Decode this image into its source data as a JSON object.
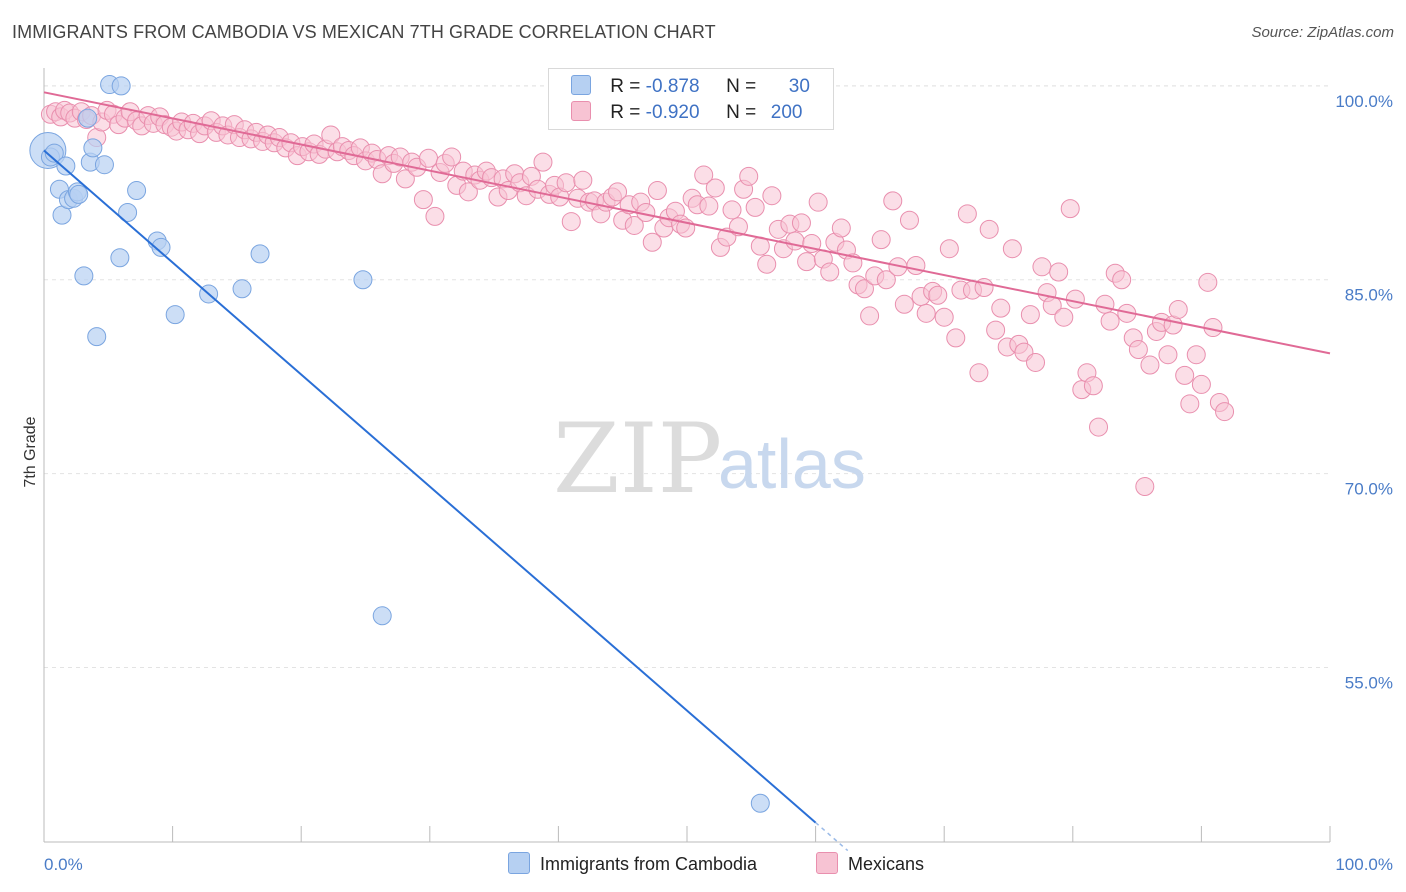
{
  "title": "IMMIGRANTS FROM CAMBODIA VS MEXICAN 7TH GRADE CORRELATION CHART",
  "source": "Source: ZipAtlas.com",
  "watermark": {
    "zip": "ZIP",
    "atlas": "atlas"
  },
  "legend": {
    "rows": [
      {
        "r_label": "R =",
        "r_value": "-0.878",
        "n_label": "N =",
        "n_value": "30"
      },
      {
        "r_label": "R =",
        "r_value": "-0.920",
        "n_label": "N =",
        "n_value": "200"
      }
    ]
  },
  "bottom_legend": {
    "cambodia": "Immigrants from Cambodia",
    "mexicans": "Mexicans"
  },
  "colors": {
    "cambodia_fill": "#b6d0f2",
    "cambodia_stroke": "#7aa5e0",
    "cambodia_line": "#2a6fd6",
    "mexican_fill": "#f7c3d3",
    "mexican_stroke": "#e98fae",
    "mexican_line": "#e06a96"
  },
  "chart_data": {
    "type": "scatter",
    "title": "IMMIGRANTS FROM CAMBODIA VS MEXICAN 7TH GRADE CORRELATION CHART",
    "xlabel": "",
    "ylabel": "7th Grade",
    "xlim": [
      0,
      100
    ],
    "ylim": [
      41.5,
      102
    ],
    "x_tick_labels": [
      "0.0%",
      "100.0%"
    ],
    "y_ticks": [
      55,
      70,
      85,
      100
    ],
    "y_tick_labels": [
      "55.0%",
      "70.0%",
      "85.0%",
      "100.0%"
    ],
    "grid": true,
    "legend_position": "top-center",
    "series": [
      {
        "name": "Immigrants from Cambodia",
        "points": [
          [
            0.3,
            95.0
          ],
          [
            0.5,
            94.5
          ],
          [
            0.8,
            94.8
          ],
          [
            1.2,
            92.0
          ],
          [
            1.4,
            90.0
          ],
          [
            1.7,
            93.8
          ],
          [
            1.9,
            91.2
          ],
          [
            2.3,
            91.3
          ],
          [
            2.6,
            91.8
          ],
          [
            2.7,
            91.6
          ],
          [
            3.1,
            85.3
          ],
          [
            3.4,
            97.5
          ],
          [
            3.6,
            94.1
          ],
          [
            3.8,
            95.2
          ],
          [
            4.1,
            80.6
          ],
          [
            4.7,
            93.9
          ],
          [
            5.1,
            100.1
          ],
          [
            6.0,
            100.0
          ],
          [
            5.9,
            86.7
          ],
          [
            6.5,
            90.2
          ],
          [
            7.2,
            91.9
          ],
          [
            8.8,
            88.0
          ],
          [
            9.1,
            87.5
          ],
          [
            10.2,
            82.3
          ],
          [
            12.8,
            83.9
          ],
          [
            15.4,
            84.3
          ],
          [
            16.8,
            87.0
          ],
          [
            24.8,
            85.0
          ],
          [
            26.3,
            59.0
          ],
          [
            55.7,
            44.5
          ]
        ],
        "trend": {
          "x": [
            0,
            60
          ],
          "y": [
            95.0,
            43.0
          ],
          "dashed_x": [
            60,
            62.5
          ]
        }
      },
      {
        "name": "Mexicans",
        "points": [
          [
            0.5,
            97.8
          ],
          [
            0.9,
            98.0
          ],
          [
            1.3,
            97.6
          ],
          [
            1.6,
            98.1
          ],
          [
            2.0,
            97.9
          ],
          [
            2.4,
            97.5
          ],
          [
            2.9,
            98.0
          ],
          [
            3.3,
            97.4
          ],
          [
            3.7,
            97.7
          ],
          [
            4.1,
            96.0
          ],
          [
            4.5,
            97.2
          ],
          [
            4.9,
            98.1
          ],
          [
            5.4,
            97.8
          ],
          [
            5.8,
            97.0
          ],
          [
            6.3,
            97.5
          ],
          [
            6.7,
            98.0
          ],
          [
            7.2,
            97.3
          ],
          [
            7.6,
            96.9
          ],
          [
            8.1,
            97.7
          ],
          [
            8.5,
            97.1
          ],
          [
            9.0,
            97.6
          ],
          [
            9.4,
            97.0
          ],
          [
            9.9,
            96.8
          ],
          [
            10.3,
            96.5
          ],
          [
            10.7,
            97.2
          ],
          [
            11.2,
            96.6
          ],
          [
            11.6,
            97.1
          ],
          [
            12.1,
            96.3
          ],
          [
            12.5,
            96.9
          ],
          [
            13.0,
            97.3
          ],
          [
            13.4,
            96.4
          ],
          [
            13.9,
            96.9
          ],
          [
            14.3,
            96.2
          ],
          [
            14.8,
            97.0
          ],
          [
            15.2,
            96.0
          ],
          [
            15.6,
            96.6
          ],
          [
            16.1,
            95.9
          ],
          [
            16.5,
            96.4
          ],
          [
            17.0,
            95.7
          ],
          [
            17.4,
            96.2
          ],
          [
            17.9,
            95.6
          ],
          [
            18.3,
            96.0
          ],
          [
            18.8,
            95.2
          ],
          [
            19.2,
            95.6
          ],
          [
            19.7,
            94.6
          ],
          [
            20.1,
            95.3
          ],
          [
            20.6,
            94.9
          ],
          [
            21.0,
            95.5
          ],
          [
            21.4,
            94.7
          ],
          [
            21.9,
            95.1
          ],
          [
            22.3,
            96.2
          ],
          [
            22.8,
            94.9
          ],
          [
            23.2,
            95.3
          ],
          [
            23.7,
            95.0
          ],
          [
            24.1,
            94.6
          ],
          [
            24.6,
            95.2
          ],
          [
            25.0,
            94.2
          ],
          [
            25.5,
            94.8
          ],
          [
            25.9,
            94.3
          ],
          [
            26.3,
            93.2
          ],
          [
            26.8,
            94.6
          ],
          [
            27.2,
            94.0
          ],
          [
            27.7,
            94.5
          ],
          [
            28.1,
            92.8
          ],
          [
            28.6,
            94.1
          ],
          [
            29.0,
            93.7
          ],
          [
            29.5,
            91.2
          ],
          [
            29.9,
            94.4
          ],
          [
            30.4,
            89.9
          ],
          [
            30.8,
            93.3
          ],
          [
            31.2,
            94.0
          ],
          [
            31.7,
            94.5
          ],
          [
            32.1,
            92.3
          ],
          [
            32.6,
            93.4
          ],
          [
            33.0,
            91.8
          ],
          [
            33.5,
            93.1
          ],
          [
            33.9,
            92.7
          ],
          [
            34.4,
            93.4
          ],
          [
            34.8,
            92.9
          ],
          [
            35.3,
            91.4
          ],
          [
            35.7,
            92.8
          ],
          [
            36.1,
            91.9
          ],
          [
            36.6,
            93.2
          ],
          [
            37.0,
            92.5
          ],
          [
            37.5,
            91.5
          ],
          [
            37.9,
            93.0
          ],
          [
            38.4,
            92.0
          ],
          [
            38.8,
            94.1
          ],
          [
            39.3,
            91.6
          ],
          [
            39.7,
            92.3
          ],
          [
            40.1,
            91.4
          ],
          [
            40.6,
            92.5
          ],
          [
            41.0,
            89.5
          ],
          [
            41.5,
            91.3
          ],
          [
            41.9,
            92.7
          ],
          [
            42.4,
            91.0
          ],
          [
            42.8,
            91.1
          ],
          [
            43.3,
            90.1
          ],
          [
            43.7,
            91.0
          ],
          [
            44.2,
            91.4
          ],
          [
            44.6,
            91.8
          ],
          [
            45.0,
            89.6
          ],
          [
            45.5,
            90.8
          ],
          [
            45.9,
            89.2
          ],
          [
            46.4,
            91.0
          ],
          [
            46.8,
            90.2
          ],
          [
            47.3,
            87.9
          ],
          [
            47.7,
            91.9
          ],
          [
            48.2,
            89.0
          ],
          [
            48.6,
            89.8
          ],
          [
            49.1,
            90.3
          ],
          [
            49.5,
            89.3
          ],
          [
            49.9,
            89.0
          ],
          [
            50.4,
            91.3
          ],
          [
            50.8,
            90.8
          ],
          [
            51.3,
            93.1
          ],
          [
            51.7,
            90.7
          ],
          [
            52.2,
            92.1
          ],
          [
            52.6,
            87.5
          ],
          [
            53.1,
            88.3
          ],
          [
            53.5,
            90.4
          ],
          [
            54.0,
            89.1
          ],
          [
            54.4,
            92.0
          ],
          [
            54.8,
            93.0
          ],
          [
            55.3,
            90.6
          ],
          [
            55.7,
            87.6
          ],
          [
            56.2,
            86.2
          ],
          [
            56.6,
            91.5
          ],
          [
            57.1,
            88.9
          ],
          [
            57.5,
            87.4
          ],
          [
            58.0,
            89.3
          ],
          [
            58.4,
            88.0
          ],
          [
            58.9,
            89.4
          ],
          [
            59.3,
            86.4
          ],
          [
            59.7,
            87.8
          ],
          [
            60.2,
            91.0
          ],
          [
            60.6,
            86.6
          ],
          [
            61.1,
            85.6
          ],
          [
            61.5,
            87.9
          ],
          [
            62.0,
            89.0
          ],
          [
            62.4,
            87.3
          ],
          [
            62.9,
            86.3
          ],
          [
            63.3,
            84.6
          ],
          [
            63.8,
            84.3
          ],
          [
            64.2,
            82.2
          ],
          [
            64.6,
            85.3
          ],
          [
            65.1,
            88.1
          ],
          [
            65.5,
            85.0
          ],
          [
            66.0,
            91.1
          ],
          [
            66.4,
            86.0
          ],
          [
            66.9,
            83.1
          ],
          [
            67.3,
            89.6
          ],
          [
            67.8,
            86.1
          ],
          [
            68.2,
            83.7
          ],
          [
            68.6,
            82.4
          ],
          [
            69.1,
            84.1
          ],
          [
            69.5,
            83.8
          ],
          [
            70.0,
            82.1
          ],
          [
            70.4,
            87.4
          ],
          [
            70.9,
            80.5
          ],
          [
            71.3,
            84.2
          ],
          [
            71.8,
            90.1
          ],
          [
            72.2,
            84.2
          ],
          [
            72.7,
            77.8
          ],
          [
            73.1,
            84.4
          ],
          [
            73.5,
            88.9
          ],
          [
            74.0,
            81.1
          ],
          [
            74.4,
            82.8
          ],
          [
            74.9,
            79.8
          ],
          [
            75.3,
            87.4
          ],
          [
            75.8,
            80.0
          ],
          [
            76.2,
            79.4
          ],
          [
            76.7,
            82.3
          ],
          [
            77.1,
            78.6
          ],
          [
            77.6,
            86.0
          ],
          [
            78.0,
            84.0
          ],
          [
            78.4,
            83.0
          ],
          [
            78.9,
            85.6
          ],
          [
            79.3,
            82.1
          ],
          [
            79.8,
            90.5
          ],
          [
            80.2,
            83.5
          ],
          [
            80.7,
            76.5
          ],
          [
            81.1,
            77.8
          ],
          [
            81.6,
            76.8
          ],
          [
            82.0,
            73.6
          ],
          [
            82.5,
            83.1
          ],
          [
            82.9,
            81.8
          ],
          [
            83.3,
            85.5
          ],
          [
            83.8,
            85.0
          ],
          [
            84.2,
            82.4
          ],
          [
            84.7,
            80.5
          ],
          [
            85.1,
            79.6
          ],
          [
            85.6,
            69.0
          ],
          [
            86.0,
            78.4
          ],
          [
            86.5,
            81.0
          ],
          [
            86.9,
            81.7
          ],
          [
            87.4,
            79.2
          ],
          [
            87.8,
            81.5
          ],
          [
            88.2,
            82.7
          ],
          [
            88.7,
            77.6
          ],
          [
            89.1,
            75.4
          ],
          [
            89.6,
            79.2
          ],
          [
            90.0,
            76.9
          ],
          [
            90.5,
            84.8
          ],
          [
            90.9,
            81.3
          ],
          [
            91.4,
            75.5
          ],
          [
            91.8,
            74.8
          ]
        ],
        "trend": {
          "x": [
            0,
            100
          ],
          "y": [
            99.5,
            79.3
          ]
        }
      }
    ]
  }
}
